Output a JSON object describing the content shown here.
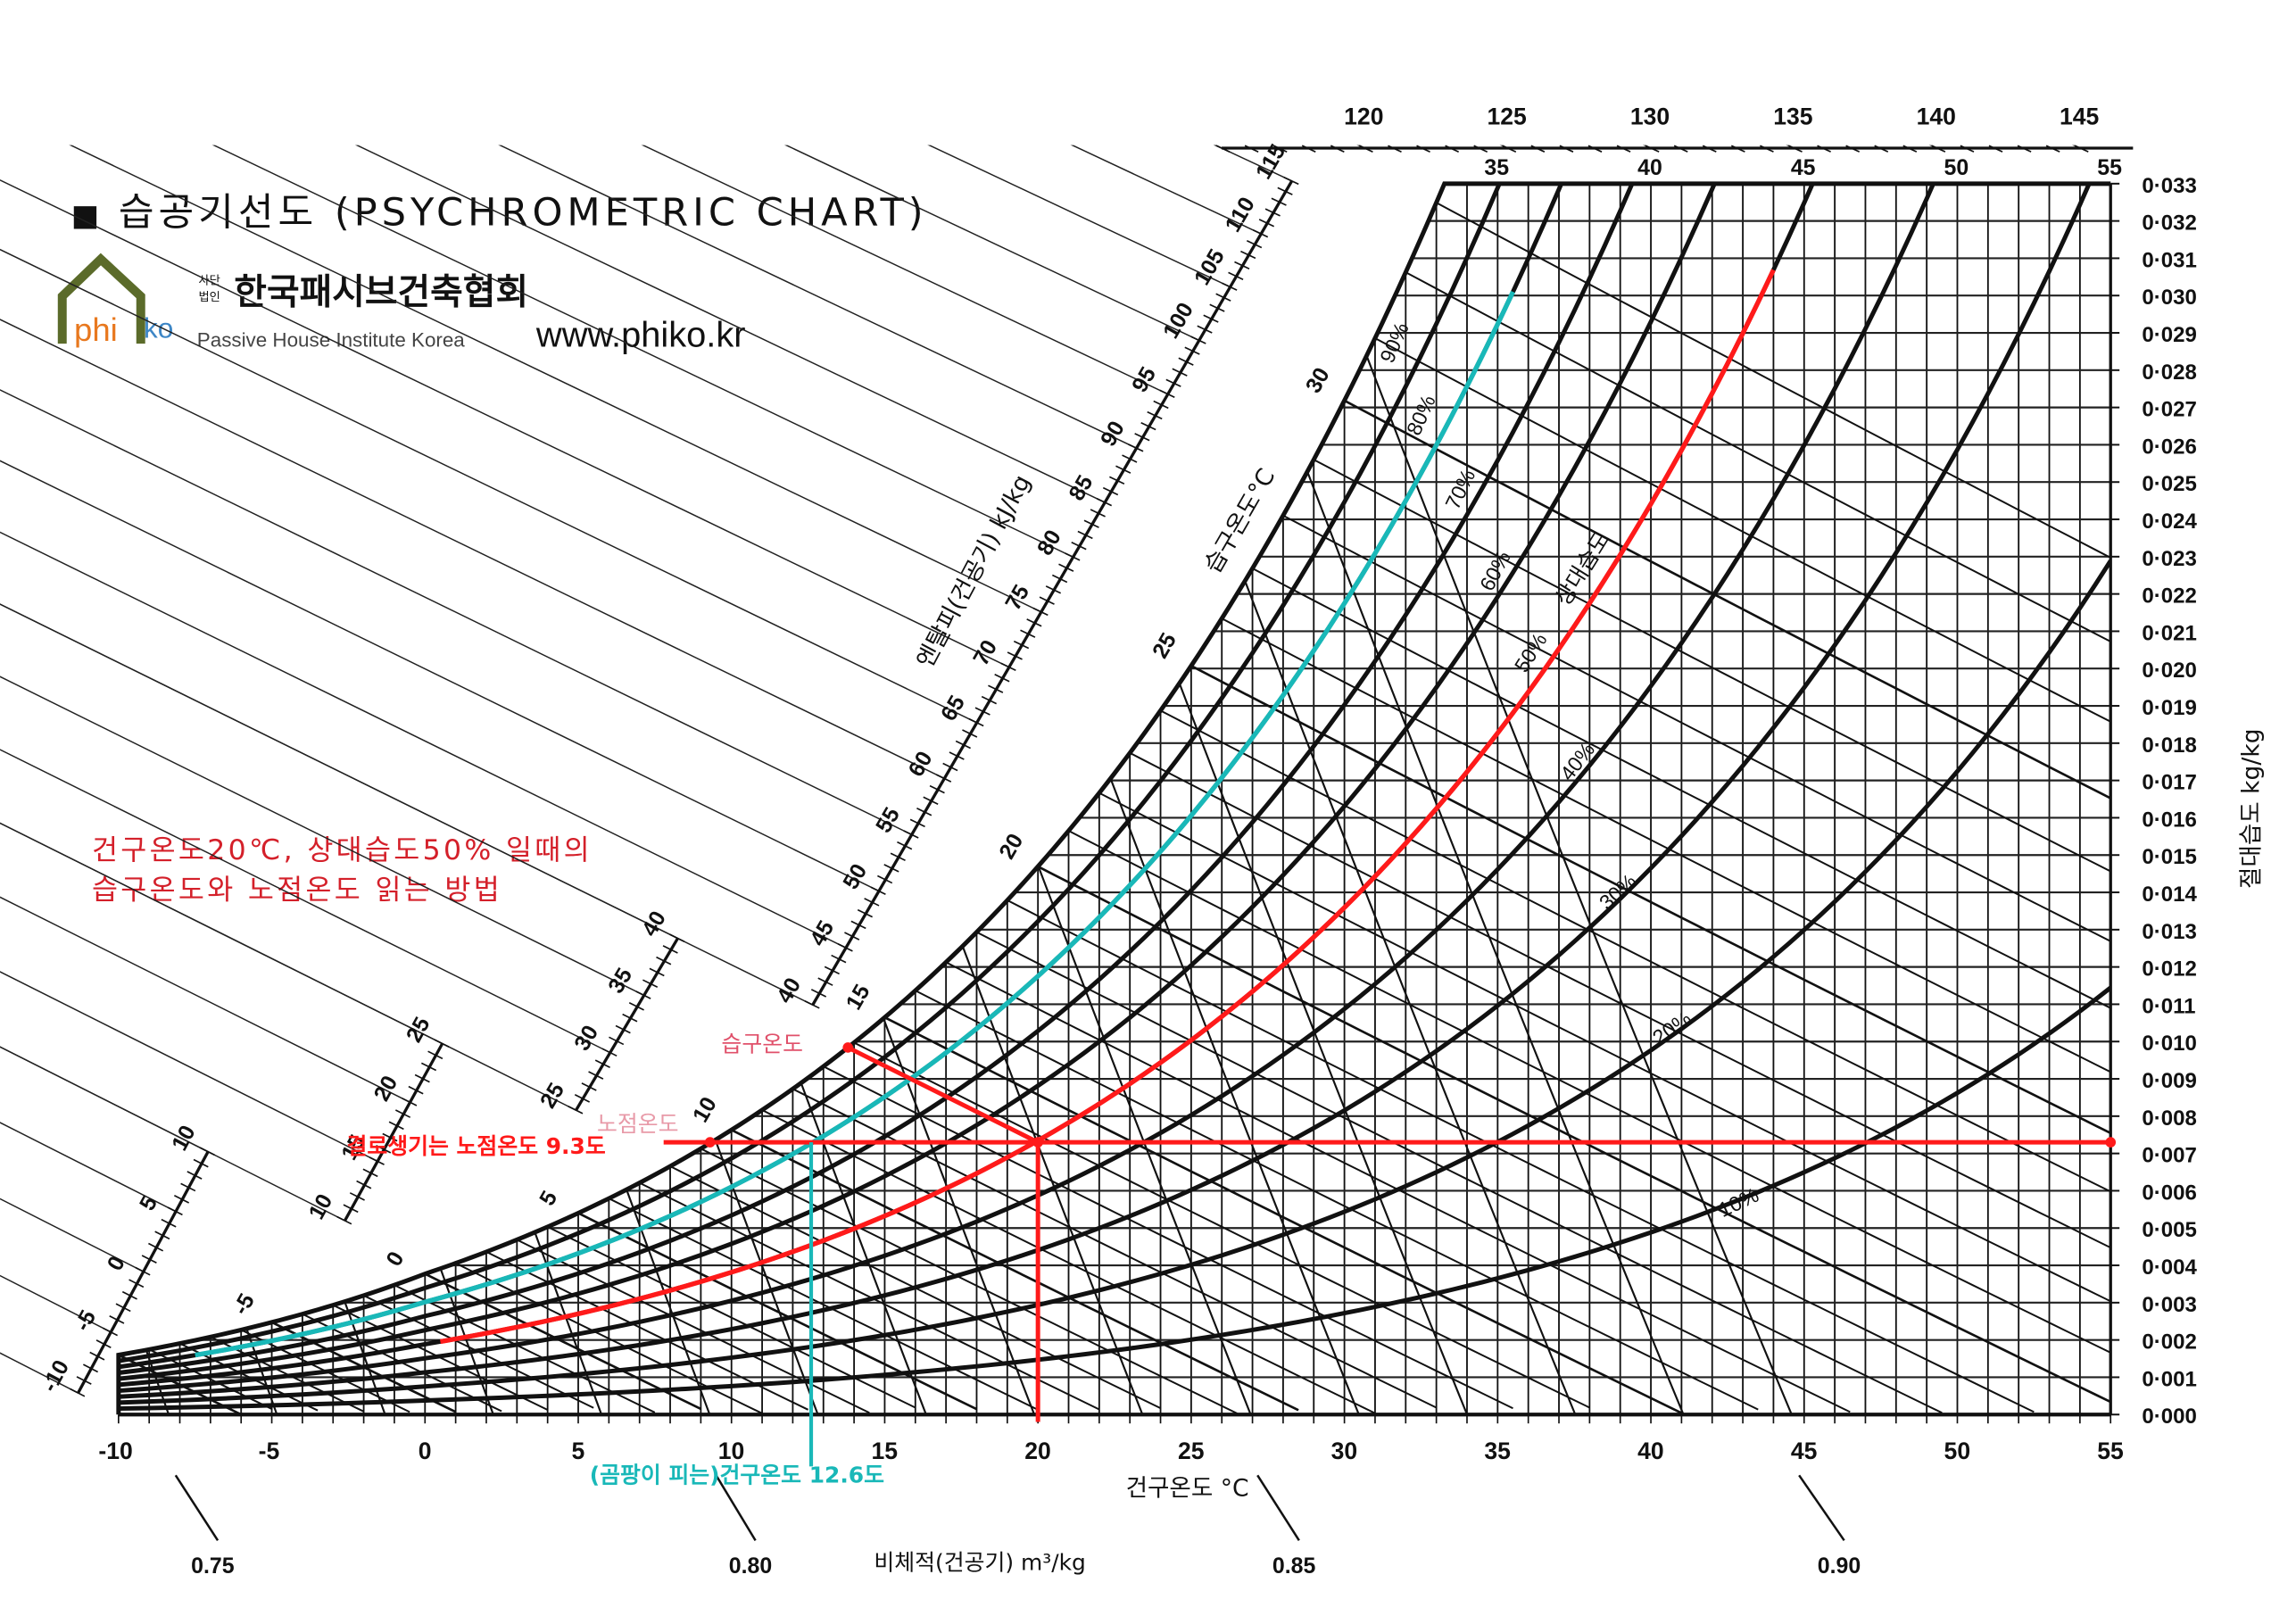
{
  "header": {
    "bullet": "■",
    "title": "습공기선도 (PSYCHROMETRIC CHART)",
    "org_prefix_1": "사단",
    "org_prefix_2": "법인",
    "org_name": "한국패시브건축협회",
    "org_english": "Passive House Institute Korea",
    "website": "www.phiko.kr",
    "logo_text_a": "phi",
    "logo_text_b": "ko"
  },
  "instruction": {
    "line1": "건구온도20℃, 상대습도50% 일때의",
    "line2": "습구온도와 노점온도 읽는 방법"
  },
  "annotations": {
    "wet_bulb_label": "습구온도",
    "dew_point_label": "노점온도",
    "dew_point_callout": "결로생기는 노점온도 9.3도",
    "mold_callout": "(곰팡이 피는)건구온도 12.6도"
  },
  "colors": {
    "accent_red": "#ff1a1a",
    "accent_cyan": "#19b8b8",
    "logo_green": "#5b6b2a",
    "logo_orange": "#e8781e",
    "logo_blue": "#3d86c6"
  },
  "chart_data": {
    "type": "line",
    "title": "습공기선도 (PSYCHROMETRIC CHART)",
    "xlabel": "건구온도 °C",
    "ylabel": "절대습도 kg/kg",
    "enthalpy_label": "엔탈피(건공기) kJ/kg",
    "wetbulb_label": "습구온도°C",
    "rh_label": "상대습도",
    "volume_label": "비체적(건공기) m³/kg",
    "xlim": [
      -10,
      55
    ],
    "ylim": [
      0,
      0.033
    ],
    "x_ticks": [
      "-10",
      "-5",
      "0",
      "5",
      "10",
      "15",
      "20",
      "25",
      "30",
      "35",
      "40",
      "45",
      "50",
      "55"
    ],
    "x_ticks_top": [
      "35",
      "40",
      "45",
      "50",
      "55"
    ],
    "y_ticks": [
      "0·000",
      "0·001",
      "0·002",
      "0·003",
      "0·004",
      "0·005",
      "0·006",
      "0·007",
      "0·008",
      "0·009",
      "0·010",
      "0·011",
      "0·012",
      "0·013",
      "0·014",
      "0·015",
      "0·016",
      "0·017",
      "0·018",
      "0·019",
      "0·020",
      "0·021",
      "0·022",
      "0·023",
      "0·024",
      "0·025",
      "0·026",
      "0·027",
      "0·028",
      "0·029",
      "0·030",
      "0·031",
      "0·032",
      "0·033"
    ],
    "rh_lines": [
      "10%",
      "20%",
      "30%",
      "40%",
      "50%",
      "60%",
      "70%",
      "80%",
      "90%"
    ],
    "wetbulb_ticks": [
      "-5",
      "0",
      "5",
      "10",
      "15",
      "20",
      "25",
      "30"
    ],
    "enthalpy_ticks": [
      "-10",
      "-5",
      "0",
      "5",
      "10",
      "10",
      "15",
      "20",
      "25",
      "25",
      "30",
      "35",
      "40",
      "40",
      "45",
      "50",
      "55",
      "60",
      "65",
      "70",
      "75",
      "80",
      "85",
      "90",
      "95",
      "100",
      "105",
      "110",
      "115"
    ],
    "enthalpy_top_ticks": [
      "120",
      "125",
      "130",
      "135",
      "140",
      "145"
    ],
    "volume_ticks": [
      "0.75",
      "0.80",
      "0.85",
      "0.90"
    ],
    "series": [
      {
        "name": "RH 80% (cyan)",
        "rh": 0.8,
        "t_range": [
          -7.5,
          35.5
        ]
      },
      {
        "name": "RH 50% (red)",
        "rh": 0.5,
        "t_range": [
          0.5,
          44
        ]
      }
    ],
    "example": {
      "dry_bulb": 20,
      "rh": 50,
      "humidity_ratio": 0.0073,
      "wet_bulb": 13.8,
      "dew_point": 9.3,
      "mold_dry_bulb": 12.6
    }
  }
}
